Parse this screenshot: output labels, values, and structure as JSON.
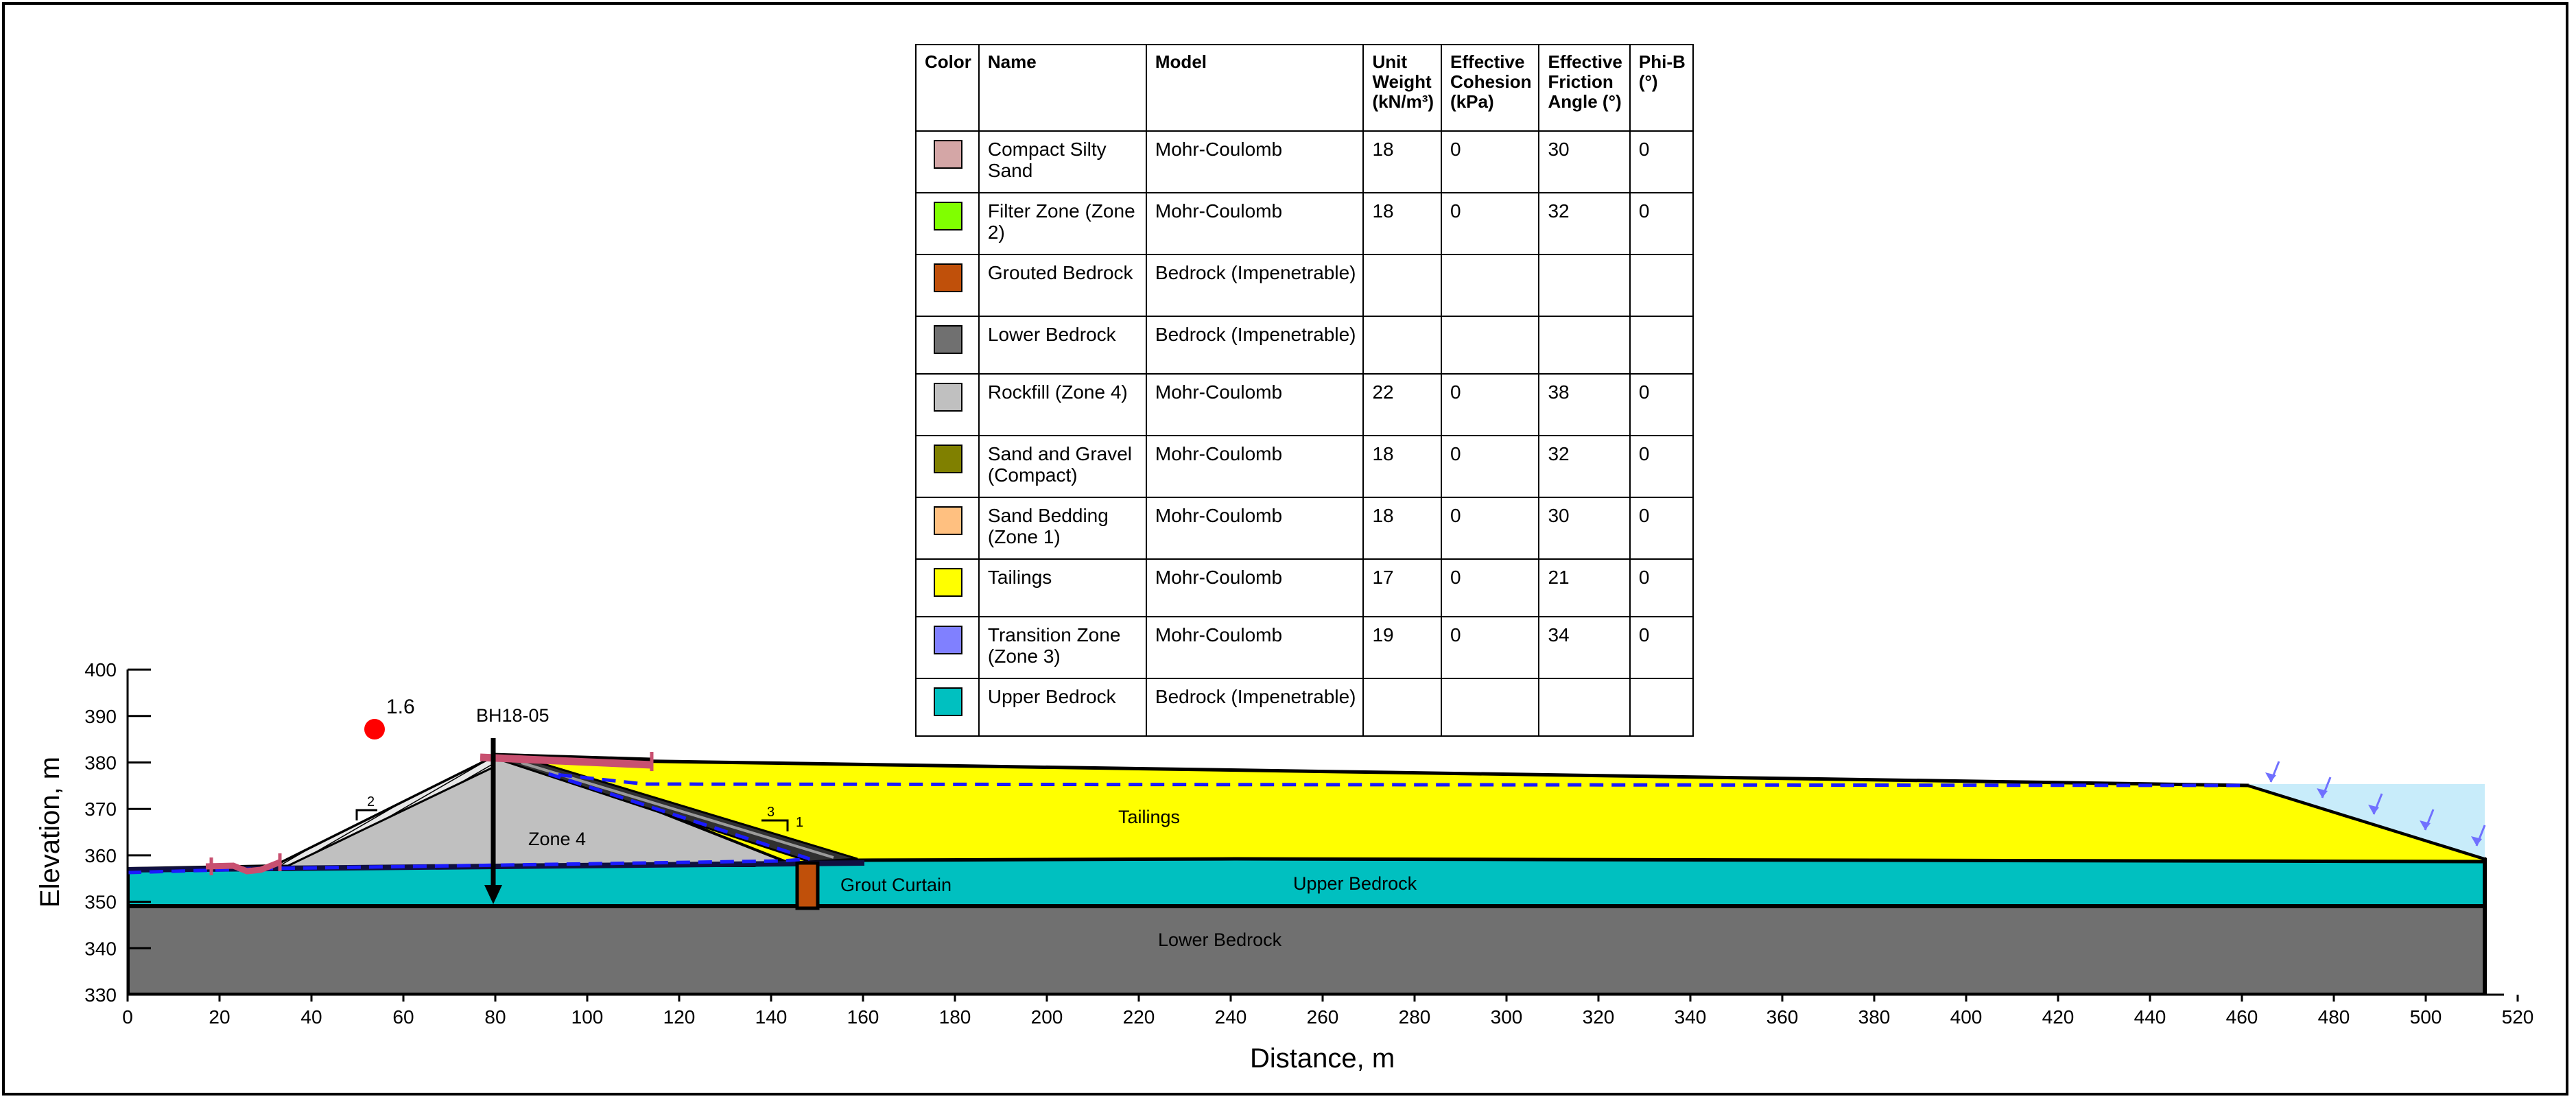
{
  "materials_table": {
    "headers": {
      "color": "Color",
      "name": "Name",
      "model": "Model",
      "unit_weight": [
        "Unit",
        "Weight",
        "(kN/m³)"
      ],
      "cohesion": [
        "Effective",
        "Cohesion",
        "(kPa)"
      ],
      "friction": [
        "Effective",
        "Friction",
        "Angle (°)"
      ],
      "phi_b": [
        "Phi-B",
        "(°)"
      ]
    },
    "rows": [
      {
        "color": "#d4a6a6",
        "name": "Compact Silty Sand",
        "model": "Mohr-Coulomb",
        "unit_weight": "18",
        "cohesion": "0",
        "friction": "30",
        "phi_b": "0"
      },
      {
        "color": "#80ff00",
        "name": "Filter Zone (Zone 2)",
        "model": "Mohr-Coulomb",
        "unit_weight": "18",
        "cohesion": "0",
        "friction": "32",
        "phi_b": "0"
      },
      {
        "color": "#c0500a",
        "name": "Grouted Bedrock",
        "model": "Bedrock (Impenetrable)",
        "unit_weight": "",
        "cohesion": "",
        "friction": "",
        "phi_b": ""
      },
      {
        "color": "#707070",
        "name": "Lower Bedrock",
        "model": "Bedrock (Impenetrable)",
        "unit_weight": "",
        "cohesion": "",
        "friction": "",
        "phi_b": ""
      },
      {
        "color": "#c0c0c0",
        "name": "Rockfill (Zone 4)",
        "model": "Mohr-Coulomb",
        "unit_weight": "22",
        "cohesion": "0",
        "friction": "38",
        "phi_b": "0"
      },
      {
        "color": "#808000",
        "name": "Sand and Gravel (Compact)",
        "model": "Mohr-Coulomb",
        "unit_weight": "18",
        "cohesion": "0",
        "friction": "32",
        "phi_b": "0"
      },
      {
        "color": "#ffc080",
        "name": "Sand Bedding (Zone 1)",
        "model": "Mohr-Coulomb",
        "unit_weight": "18",
        "cohesion": "0",
        "friction": "30",
        "phi_b": "0"
      },
      {
        "color": "#ffff00",
        "name": "Tailings",
        "model": "Mohr-Coulomb",
        "unit_weight": "17",
        "cohesion": "0",
        "friction": "21",
        "phi_b": "0"
      },
      {
        "color": "#8080ff",
        "name": "Transition Zone (Zone 3)",
        "model": "Mohr-Coulomb",
        "unit_weight": "19",
        "cohesion": "0",
        "friction": "34",
        "phi_b": "0"
      },
      {
        "color": "#00c0c0",
        "name": "Upper Bedrock",
        "model": "Bedrock (Impenetrable)",
        "unit_weight": "",
        "cohesion": "",
        "friction": "",
        "phi_b": ""
      }
    ]
  },
  "plot": {
    "x_axis": {
      "title": "Distance, m",
      "min": 0,
      "max": 520,
      "step": 20
    },
    "y_axis": {
      "title": "Elevation, m",
      "min": 330,
      "max": 400,
      "step": 10
    },
    "factor_of_safety": "1.6",
    "borehole_label": "BH18-05",
    "labels": {
      "zone4": "Zone 4",
      "tailings": "Tailings",
      "grout_curtain": "Grout Curtain",
      "upper_bedrock": "Upper Bedrock",
      "lower_bedrock": "Lower Bedrock"
    },
    "slope_marks": {
      "upstream_run": "2",
      "downstream_rise": "3",
      "downstream_run": "1"
    },
    "colors": {
      "tailings": "#ffff00",
      "rockfill": "#c0c0c0",
      "upper_bedrock": "#00c0c0",
      "lower_bedrock": "#707070",
      "grouted_bedrock": "#c0500a",
      "pond_water": "#c8ecfa",
      "piezometric_line": "#1a1aff",
      "slip_surface": "#c85070",
      "critical_center": "#ff0000",
      "pond_arrows": "#7070ff"
    }
  }
}
